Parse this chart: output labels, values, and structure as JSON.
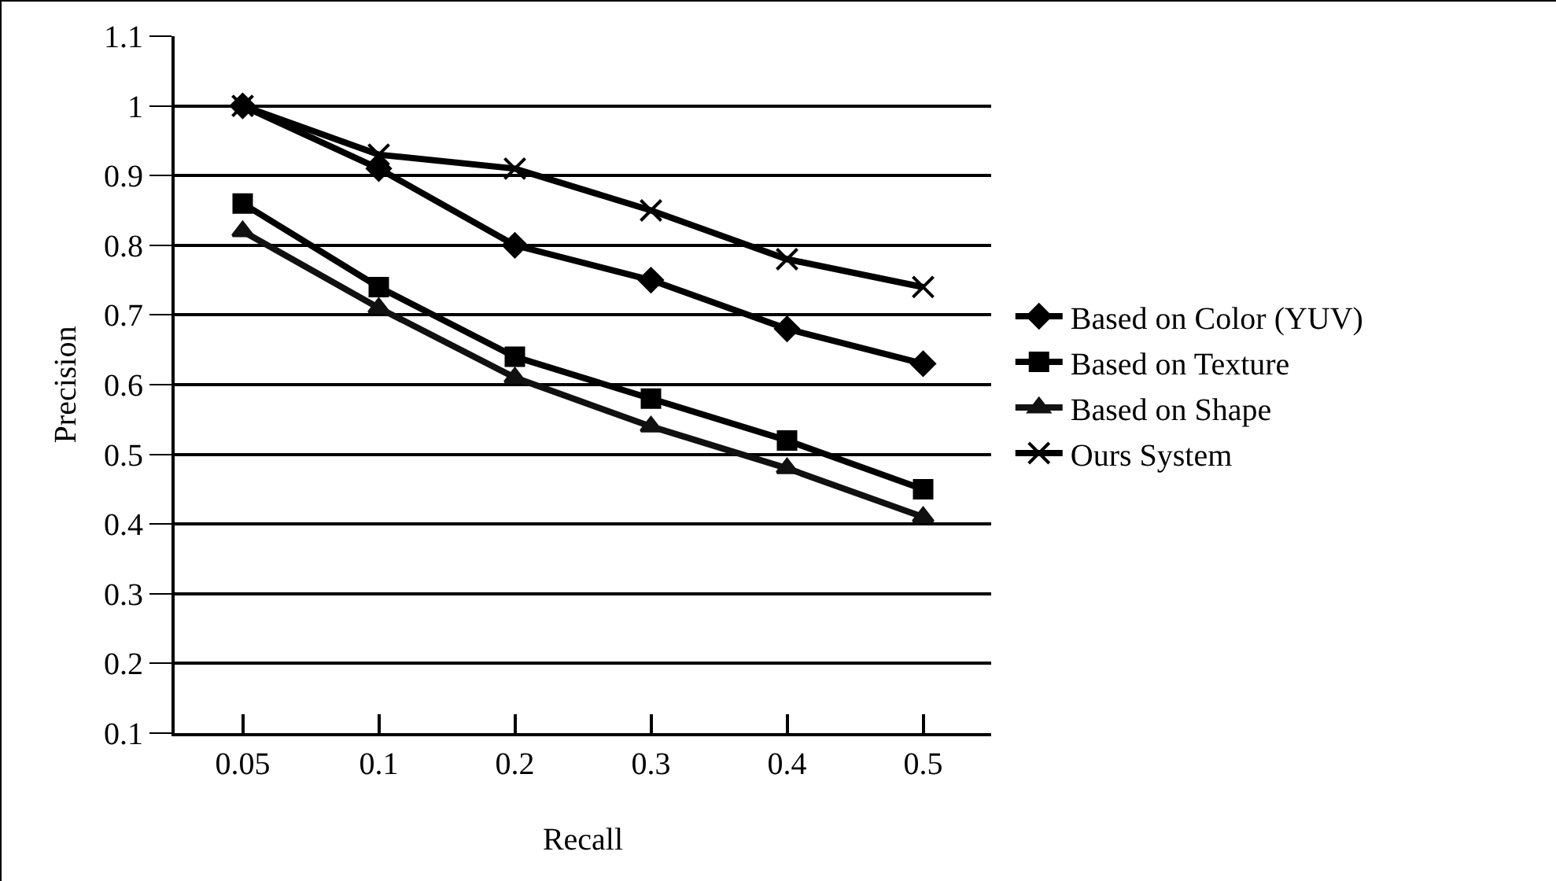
{
  "chart_data": {
    "type": "line",
    "xlabel": "Recall",
    "ylabel": "Precision",
    "categories": [
      "0.05",
      "0.1",
      "0.2",
      "0.3",
      "0.4",
      "0.5"
    ],
    "ylim": [
      0.1,
      1.1
    ],
    "yticks": [
      0.1,
      0.2,
      0.3,
      0.4,
      0.5,
      0.6,
      0.7,
      0.8,
      0.9,
      1,
      1.1
    ],
    "grid": "y",
    "legend": "right",
    "series": [
      {
        "name": "Based on Color (YUV)",
        "color": "#000000",
        "marker": "diamond",
        "values": [
          1.0,
          0.91,
          0.8,
          0.75,
          0.68,
          0.63
        ]
      },
      {
        "name": "Based on Texture",
        "color": "#000000",
        "marker": "square",
        "values": [
          0.86,
          0.74,
          0.64,
          0.58,
          0.52,
          0.45
        ]
      },
      {
        "name": "Based on Shape",
        "color": "#111111",
        "marker": "triangle",
        "values": [
          0.82,
          0.71,
          0.61,
          0.54,
          0.48,
          0.41
        ]
      },
      {
        "name": "Ours System",
        "color": "#000000",
        "marker": "cross",
        "values": [
          1.0,
          0.93,
          0.91,
          0.85,
          0.78,
          0.74
        ]
      }
    ]
  }
}
